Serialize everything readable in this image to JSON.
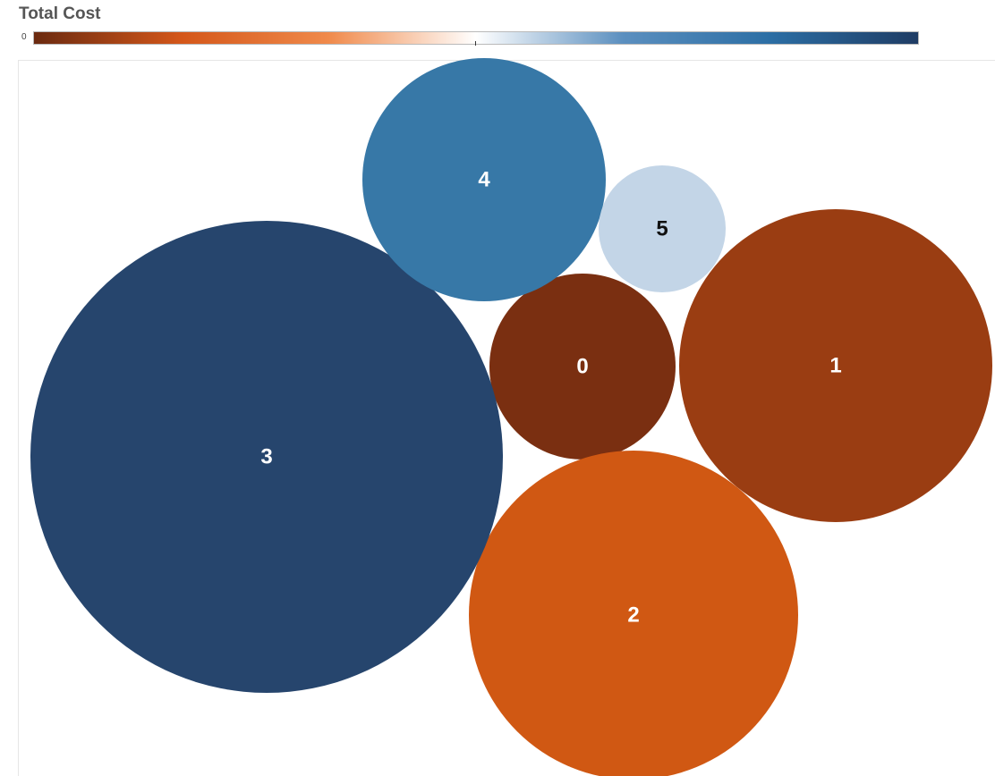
{
  "legend": {
    "title": "Total Cost",
    "min_label": "0",
    "gradient_colors": [
      "#6a2a10",
      "#d4571a",
      "#f08a4b",
      "#ffffff",
      "#5b8fbf",
      "#2c6ea4",
      "#1f3c64"
    ]
  },
  "chart_data": {
    "type": "bubble",
    "title": "",
    "color_legend": "Total Cost",
    "bubbles": [
      {
        "label": "0",
        "color": "#7a2f11",
        "text_color": "#ffffff"
      },
      {
        "label": "1",
        "color": "#9a3d12",
        "text_color": "#ffffff"
      },
      {
        "label": "2",
        "color": "#d05813",
        "text_color": "#ffffff"
      },
      {
        "label": "3",
        "color": "#26456d",
        "text_color": "#ffffff"
      },
      {
        "label": "4",
        "color": "#3778a7",
        "text_color": "#ffffff"
      },
      {
        "label": "5",
        "color": "#c3d5e7",
        "text_color": "#111111"
      }
    ]
  }
}
